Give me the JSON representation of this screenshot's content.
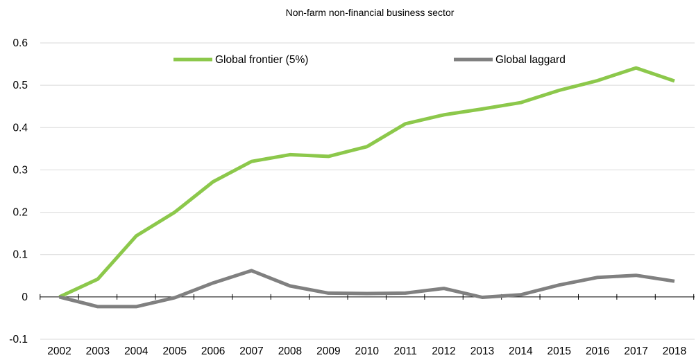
{
  "chart_data": {
    "type": "line",
    "title": "Non-farm non-financial business sector",
    "xlabel": "",
    "ylabel": "",
    "categories": [
      "2002",
      "2003",
      "2004",
      "2005",
      "2006",
      "2007",
      "2008",
      "2009",
      "2010",
      "2011",
      "2012",
      "2013",
      "2014",
      "2015",
      "2016",
      "2017",
      "2018"
    ],
    "ylim": [
      -0.1,
      0.6
    ],
    "yticks": [
      "-0.1",
      "0",
      "0.1",
      "0.2",
      "0.3",
      "0.4",
      "0.5",
      "0.6"
    ],
    "grid": true,
    "legend_position": "top",
    "series": [
      {
        "name": "Global frontier (5%)",
        "color": "#8cc84b",
        "values": [
          0.0,
          0.042,
          0.144,
          0.2,
          0.272,
          0.32,
          0.336,
          0.332,
          0.355,
          0.409,
          0.43,
          0.444,
          0.459,
          0.488,
          0.511,
          0.541,
          0.51
        ]
      },
      {
        "name": "Global laggard",
        "color": "#808080",
        "values": [
          0.0,
          -0.023,
          -0.023,
          -0.002,
          0.033,
          0.062,
          0.026,
          0.009,
          0.008,
          0.009,
          0.02,
          -0.001,
          0.005,
          0.028,
          0.046,
          0.051,
          0.037
        ]
      }
    ]
  }
}
